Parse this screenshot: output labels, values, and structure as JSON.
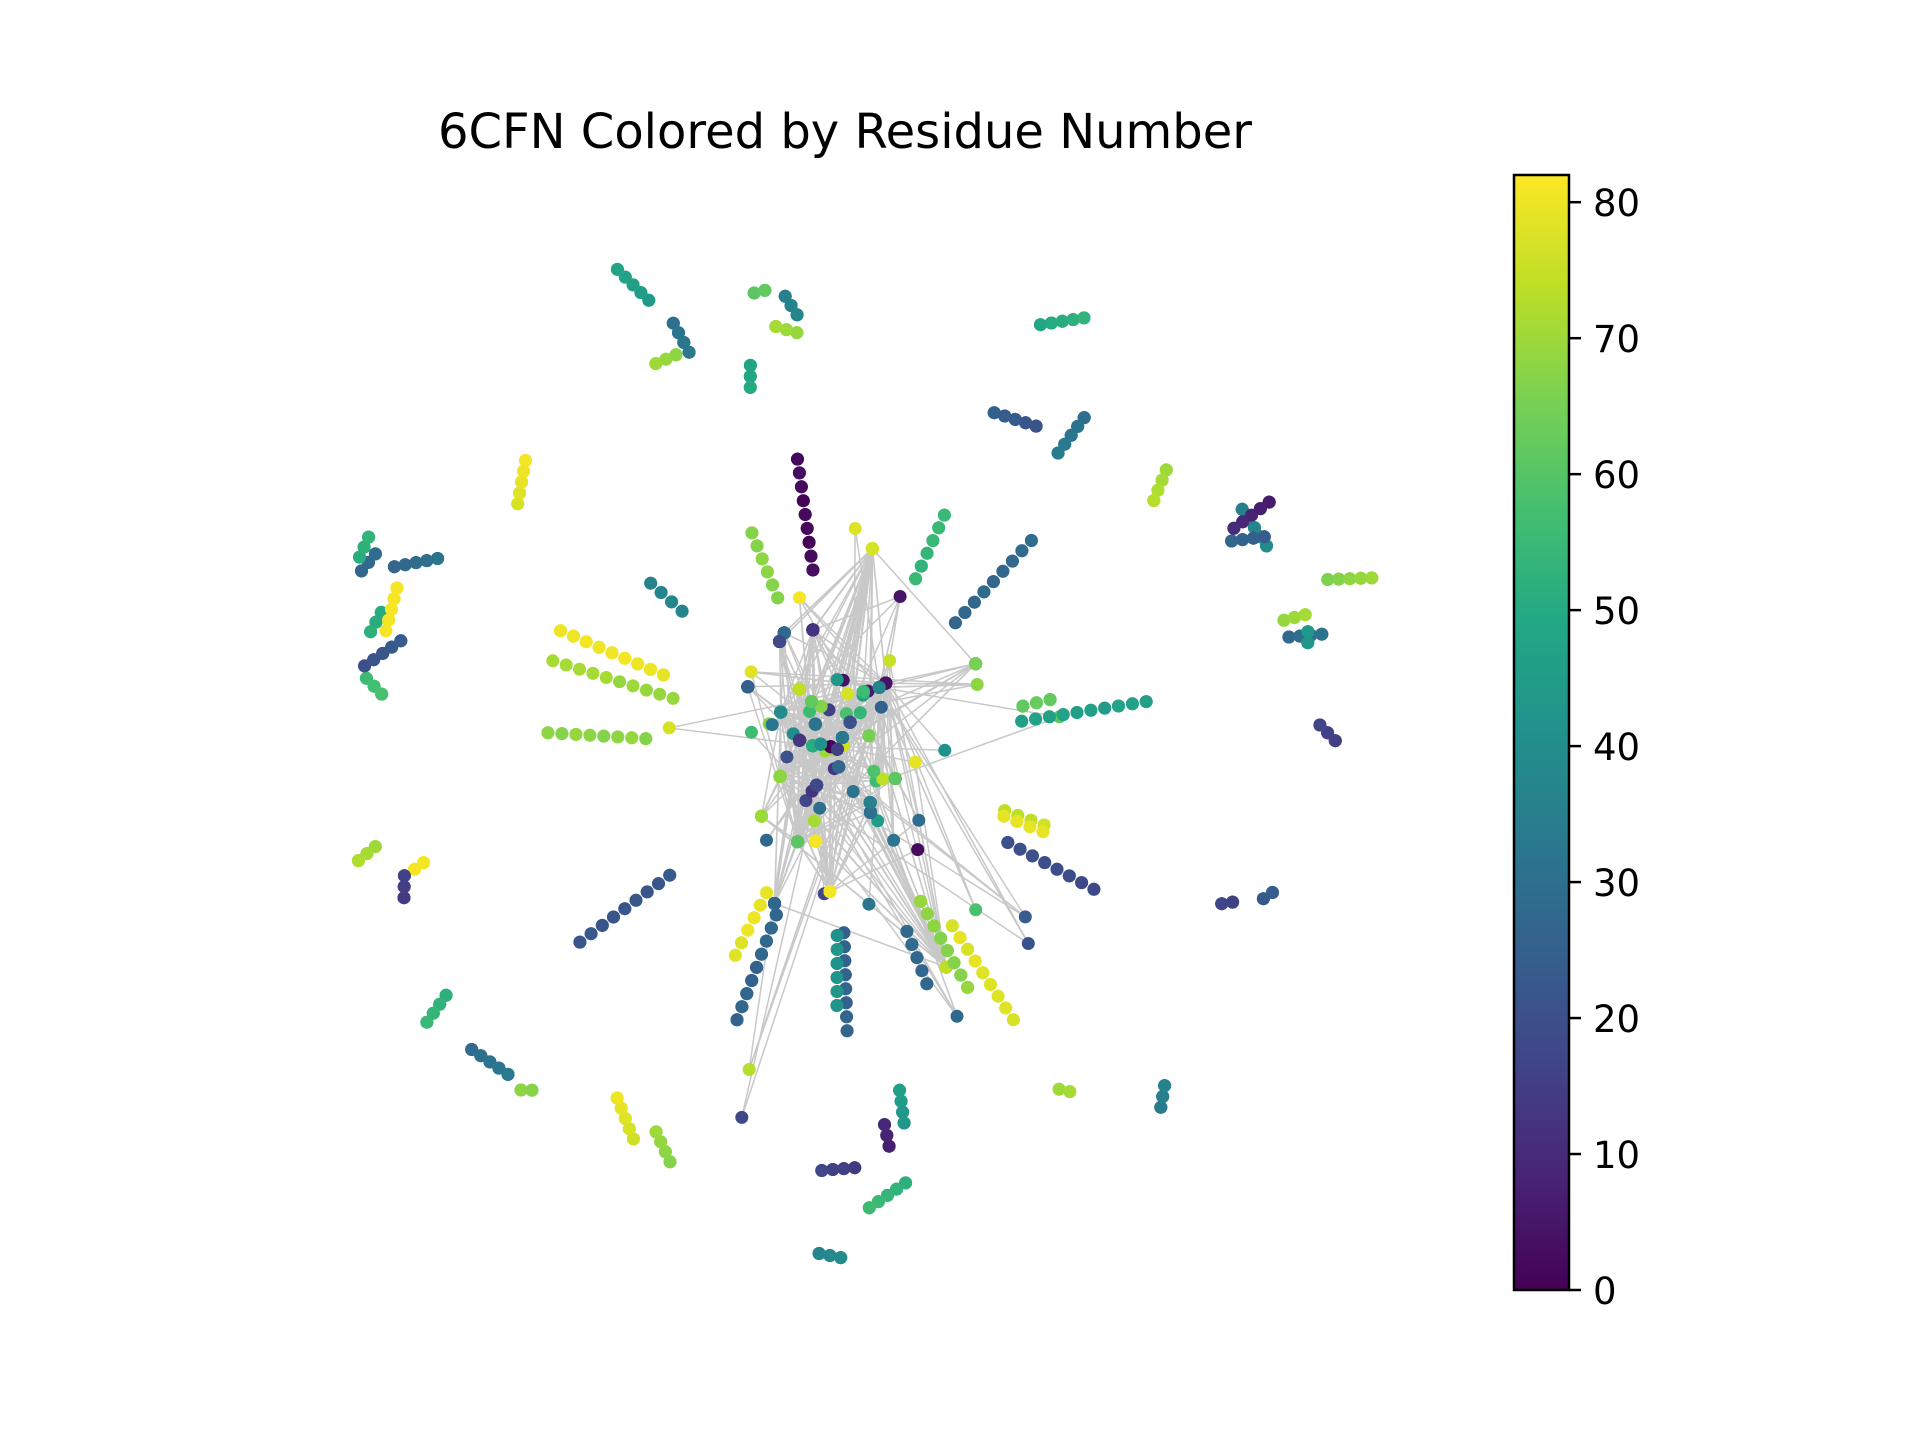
{
  "chart_data": {
    "type": "scatter",
    "title": "6CFN Colored by Residue Number",
    "xlabel": "",
    "ylabel": "",
    "axes_visible": false,
    "grid": false,
    "colormap": "viridis",
    "colorbar": {
      "placement": "right",
      "range": [
        0,
        82
      ],
      "ticks": [
        0,
        10,
        20,
        30,
        40,
        50,
        60,
        70,
        80
      ],
      "tick_labels": [
        "0",
        "10",
        "20",
        "30",
        "40",
        "50",
        "60",
        "70",
        "80"
      ]
    },
    "edge_color": "#c8c8c8",
    "node_color_by": "residue number",
    "layout_description": "dense central cluster of nodes surrounded by a ring of small disconnected components",
    "random_seed": 6
  }
}
